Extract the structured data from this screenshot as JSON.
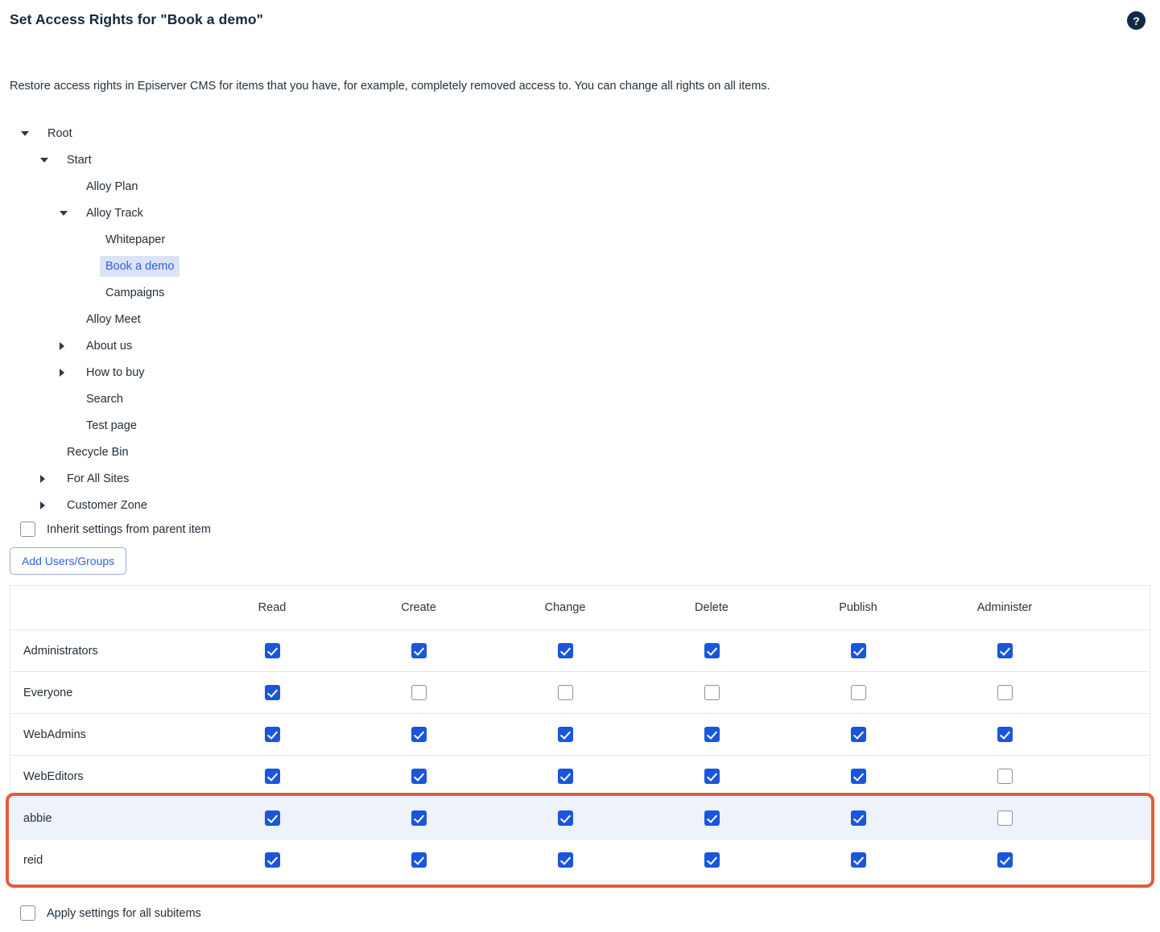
{
  "header": {
    "title": "Set Access Rights for \"Book a demo\"",
    "help_icon": "question-mark-icon"
  },
  "description": "Restore access rights in Episerver CMS for items that you have, for example, completely removed access to. You can change all rights on all items.",
  "tree": {
    "items": [
      {
        "label": "Root",
        "level": 0,
        "arrow": "down",
        "selected": false
      },
      {
        "label": "Start",
        "level": 1,
        "arrow": "down",
        "selected": false
      },
      {
        "label": "Alloy Plan",
        "level": 2,
        "arrow": "none",
        "selected": false
      },
      {
        "label": "Alloy Track",
        "level": 2,
        "arrow": "down",
        "selected": false
      },
      {
        "label": "Whitepaper",
        "level": 3,
        "arrow": "none",
        "selected": false
      },
      {
        "label": "Book a demo",
        "level": 3,
        "arrow": "none",
        "selected": true
      },
      {
        "label": "Campaigns",
        "level": 3,
        "arrow": "none",
        "selected": false
      },
      {
        "label": "Alloy Meet",
        "level": 2,
        "arrow": "none",
        "selected": false
      },
      {
        "label": "About us",
        "level": 2,
        "arrow": "right",
        "selected": false
      },
      {
        "label": "How to buy",
        "level": 2,
        "arrow": "right",
        "selected": false
      },
      {
        "label": "Search",
        "level": 2,
        "arrow": "none",
        "selected": false
      },
      {
        "label": "Test page",
        "level": 2,
        "arrow": "none",
        "selected": false
      },
      {
        "label": "Recycle Bin",
        "level": 1,
        "arrow": "none",
        "selected": false
      },
      {
        "label": "For All Sites",
        "level": 1,
        "arrow": "right",
        "selected": false
      },
      {
        "label": "Customer Zone",
        "level": 1,
        "arrow": "right",
        "selected": false
      }
    ]
  },
  "inherit_checkbox": {
    "label": "Inherit settings from parent item",
    "checked": false
  },
  "add_button": {
    "label": "Add Users/Groups"
  },
  "table": {
    "columns": [
      "Read",
      "Create",
      "Change",
      "Delete",
      "Publish",
      "Administer"
    ],
    "rows": [
      {
        "name": "Administrators",
        "permissions": [
          true,
          true,
          true,
          true,
          true,
          true
        ]
      },
      {
        "name": "Everyone",
        "permissions": [
          true,
          false,
          false,
          false,
          false,
          false
        ]
      },
      {
        "name": "WebAdmins",
        "permissions": [
          true,
          true,
          true,
          true,
          true,
          true
        ]
      },
      {
        "name": "WebEditors",
        "permissions": [
          true,
          true,
          true,
          true,
          true,
          false
        ]
      },
      {
        "name": "abbie",
        "permissions": [
          true,
          true,
          true,
          true,
          true,
          false
        ]
      },
      {
        "name": "reid",
        "permissions": [
          true,
          true,
          true,
          true,
          true,
          true
        ]
      }
    ],
    "annotation": {
      "highlighted_rows": [
        "abbie",
        "reid"
      ],
      "color": "#e25c3c"
    }
  },
  "apply_checkbox": {
    "label": "Apply settings for all subitems",
    "checked": false
  },
  "colors": {
    "accent_blue": "#2e62d9",
    "checkbox_blue": "#1a56db",
    "selected_item_bg": "#dbe3f6",
    "highlight_row_bg": "#eef2fb",
    "annotation_orange": "#e25c3c",
    "help_circle": "#132a45"
  }
}
